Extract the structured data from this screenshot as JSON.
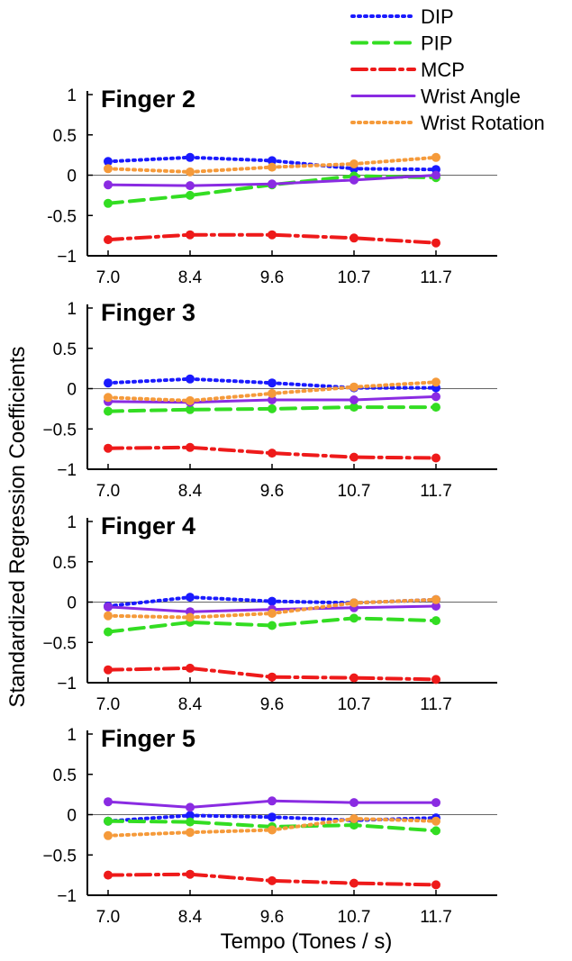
{
  "figure": {
    "ylabel": "Standardized Regression Coefficients",
    "xlabel": "Tempo (Tones / s)"
  },
  "legend": {
    "placement": "top-right",
    "entries": [
      {
        "label": "DIP",
        "color": "#1a1aff",
        "style": "dotted"
      },
      {
        "label": "PIP",
        "color": "#33dd22",
        "style": "dashed"
      },
      {
        "label": "MCP",
        "color": "#ee1a1a",
        "style": "dash-dot"
      },
      {
        "label": "Wrist Angle",
        "color": "#8a2be2",
        "style": "solid"
      },
      {
        "label": "Wrist Rotation",
        "color": "#f59a3a",
        "style": "dotted"
      }
    ]
  },
  "chart_data": [
    {
      "type": "line",
      "title": "Finger 2",
      "categories": [
        "7.0",
        "8.4",
        "9.6",
        "10.7",
        "11.7"
      ],
      "ylim": [
        -1,
        1
      ],
      "yticks": [
        "1",
        "0.5",
        "0",
        "-0.5",
        "−1"
      ],
      "series": [
        {
          "name": "DIP",
          "values": [
            0.17,
            0.22,
            0.18,
            0.08,
            0.07
          ]
        },
        {
          "name": "PIP",
          "values": [
            -0.35,
            -0.25,
            -0.12,
            -0.01,
            -0.03
          ]
        },
        {
          "name": "MCP",
          "values": [
            -0.8,
            -0.74,
            -0.74,
            -0.78,
            -0.84
          ]
        },
        {
          "name": "Wrist Angle",
          "values": [
            -0.12,
            -0.13,
            -0.11,
            -0.06,
            0.0
          ]
        },
        {
          "name": "Wrist Rotation",
          "values": [
            0.08,
            0.04,
            0.1,
            0.14,
            0.22
          ]
        }
      ]
    },
    {
      "type": "line",
      "title": "Finger 3",
      "categories": [
        "7.0",
        "8.4",
        "9.6",
        "10.7",
        "11.7"
      ],
      "ylim": [
        -1,
        1
      ],
      "yticks": [
        "1",
        "0.5",
        "0",
        "−0.5",
        "−1"
      ],
      "series": [
        {
          "name": "DIP",
          "values": [
            0.07,
            0.12,
            0.07,
            0.01,
            0.01
          ]
        },
        {
          "name": "PIP",
          "values": [
            -0.28,
            -0.26,
            -0.25,
            -0.23,
            -0.23
          ]
        },
        {
          "name": "MCP",
          "values": [
            -0.74,
            -0.73,
            -0.8,
            -0.85,
            -0.86
          ]
        },
        {
          "name": "Wrist Angle",
          "values": [
            -0.16,
            -0.17,
            -0.14,
            -0.14,
            -0.1
          ]
        },
        {
          "name": "Wrist Rotation",
          "values": [
            -0.11,
            -0.15,
            -0.06,
            0.02,
            0.08
          ]
        }
      ]
    },
    {
      "type": "line",
      "title": "Finger 4",
      "categories": [
        "7.0",
        "8.4",
        "9.6",
        "10.7",
        "11.7"
      ],
      "ylim": [
        -1,
        1
      ],
      "yticks": [
        "1",
        "0.5",
        "0",
        "−0.5",
        "−1"
      ],
      "series": [
        {
          "name": "DIP",
          "values": [
            -0.05,
            0.06,
            0.01,
            -0.01,
            0.03
          ]
        },
        {
          "name": "PIP",
          "values": [
            -0.37,
            -0.25,
            -0.29,
            -0.2,
            -0.23
          ]
        },
        {
          "name": "MCP",
          "values": [
            -0.84,
            -0.82,
            -0.93,
            -0.94,
            -0.96
          ]
        },
        {
          "name": "Wrist Angle",
          "values": [
            -0.06,
            -0.12,
            -0.09,
            -0.07,
            -0.05
          ]
        },
        {
          "name": "Wrist Rotation",
          "values": [
            -0.17,
            -0.19,
            -0.14,
            -0.01,
            0.03
          ]
        }
      ]
    },
    {
      "type": "line",
      "title": "Finger 5",
      "categories": [
        "7.0",
        "8.4",
        "9.6",
        "10.7",
        "11.7"
      ],
      "ylim": [
        -1,
        1
      ],
      "yticks": [
        "1",
        "0.5",
        "0",
        "−0.5",
        "−1"
      ],
      "series": [
        {
          "name": "DIP",
          "values": [
            -0.08,
            -0.01,
            -0.03,
            -0.07,
            -0.04
          ]
        },
        {
          "name": "PIP",
          "values": [
            -0.08,
            -0.09,
            -0.15,
            -0.13,
            -0.2
          ]
        },
        {
          "name": "MCP",
          "values": [
            -0.75,
            -0.74,
            -0.82,
            -0.85,
            -0.87
          ]
        },
        {
          "name": "Wrist Angle",
          "values": [
            0.16,
            0.09,
            0.17,
            0.15,
            0.15
          ]
        },
        {
          "name": "Wrist Rotation",
          "values": [
            -0.26,
            -0.22,
            -0.19,
            -0.05,
            -0.08
          ]
        }
      ]
    }
  ]
}
